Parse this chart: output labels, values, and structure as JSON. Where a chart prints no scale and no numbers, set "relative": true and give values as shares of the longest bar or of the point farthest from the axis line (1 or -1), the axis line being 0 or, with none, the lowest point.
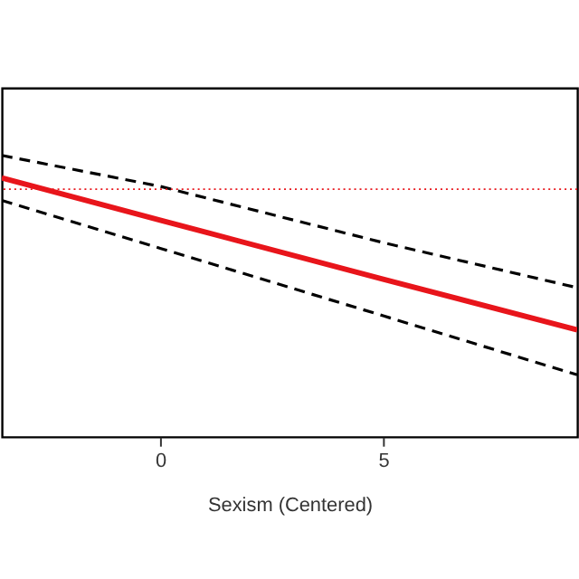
{
  "chart_data": {
    "type": "line",
    "relative": true,
    "xlabel": "Sexism (Centered)",
    "xlim": [
      -3.55,
      9.35
    ],
    "xticks": [
      0,
      5
    ],
    "grid": false,
    "marker": "none",
    "series": [
      {
        "color": "#000000",
        "line_style": "dashed",
        "x": [
          -3.55,
          0,
          5,
          9.35
        ],
        "values": [
          1.0,
          0.89,
          0.69,
          0.53
        ]
      },
      {
        "color": "#000000",
        "line_style": "dashed",
        "x": [
          -3.55,
          0,
          5,
          9.35
        ],
        "values": [
          0.84,
          0.67,
          0.43,
          0.22
        ]
      },
      {
        "color": "#e8151b",
        "line_style": "solid",
        "x": [
          -3.55,
          0,
          5,
          9.35
        ],
        "values": [
          0.92,
          0.77,
          0.56,
          0.38
        ]
      }
    ],
    "ref_lines": [
      {
        "axis": "y",
        "value": 0.88,
        "color": "#e8151b",
        "line_style": "dotted"
      }
    ]
  }
}
